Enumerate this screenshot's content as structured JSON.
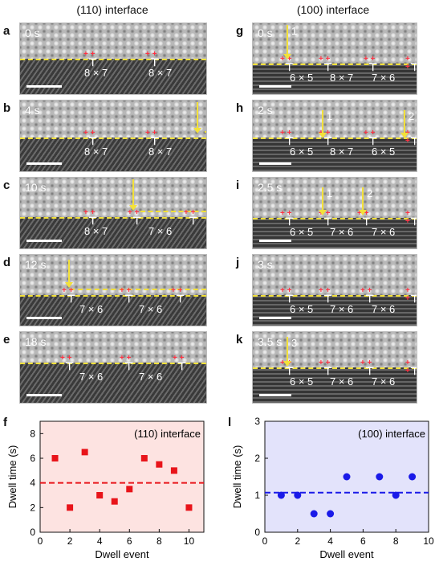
{
  "titles": {
    "left": "(110) interface",
    "right": "(100) interface"
  },
  "left_panels": [
    {
      "label": "a",
      "time": "0 s",
      "ratios": [
        "8 × 7",
        "8 × 7"
      ]
    },
    {
      "label": "b",
      "time": "4 s",
      "ratios": [
        "8 × 7",
        "8 × 7"
      ]
    },
    {
      "label": "c",
      "time": "10 s",
      "ratios": [
        "8 × 7",
        "7 × 6"
      ]
    },
    {
      "label": "d",
      "time": "12 s",
      "ratios": [
        "7 × 6",
        "7 × 6"
      ]
    },
    {
      "label": "e",
      "time": "18 s",
      "ratios": [
        "7 × 6",
        "7 × 6"
      ]
    }
  ],
  "right_panels": [
    {
      "label": "g",
      "time": "0 s",
      "ratios": [
        "6 × 5",
        "8 × 7",
        "7 × 6"
      ],
      "arrows": [
        "1"
      ]
    },
    {
      "label": "h",
      "time": "2 s",
      "ratios": [
        "6 × 5",
        "8 × 7",
        "6 × 5"
      ],
      "arrows": [
        "1",
        "2"
      ]
    },
    {
      "label": "i",
      "time": "2.5 s",
      "ratios": [
        "6 × 5",
        "7 × 6",
        "7 × 6"
      ],
      "arrows": [
        "1",
        "2"
      ]
    },
    {
      "label": "j",
      "time": "3 s",
      "ratios": [
        "6 × 5",
        "7 × 6",
        "7 × 6"
      ],
      "arrows": []
    },
    {
      "label": "k",
      "time": "3.5 s",
      "ratios": [
        "6 × 5",
        "7 × 6",
        "7 × 6"
      ],
      "arrows": [
        "3"
      ]
    }
  ],
  "dislocation_symbol": "⊤",
  "chart_data": [
    {
      "panel_label": "f",
      "type": "scatter",
      "title": "(110) interface",
      "xlabel": "Dwell event",
      "ylabel": "Dwell time (s)",
      "xlim": [
        0,
        11
      ],
      "ylim": [
        0,
        9
      ],
      "xticks": [
        0,
        2,
        4,
        6,
        8,
        10
      ],
      "yticks": [
        0,
        2,
        4,
        6,
        8
      ],
      "x": [
        1,
        2,
        3,
        4,
        5,
        6,
        7,
        8,
        9,
        10
      ],
      "y": [
        6,
        2,
        6.5,
        3,
        2.5,
        3.5,
        6,
        5.5,
        5,
        2
      ],
      "mean": 4,
      "marker": "square",
      "color": "#e8141a",
      "background": "#fde3e1",
      "grid": false
    },
    {
      "panel_label": "l",
      "type": "scatter",
      "title": "(100) interface",
      "xlabel": "Dwell event",
      "ylabel": "Dwell time (s)",
      "xlim": [
        0,
        10
      ],
      "ylim": [
        0,
        3
      ],
      "xticks": [
        0,
        2,
        4,
        6,
        8,
        10
      ],
      "yticks": [
        0,
        1,
        2,
        3
      ],
      "x": [
        1,
        2,
        3,
        4,
        5,
        7,
        8,
        9
      ],
      "y": [
        1,
        1,
        0.5,
        0.5,
        1.5,
        1.5,
        1,
        1.5
      ],
      "mean": 1.07,
      "marker": "circle",
      "color": "#1a1ae8",
      "background": "#e3e3fb",
      "grid": false
    }
  ]
}
